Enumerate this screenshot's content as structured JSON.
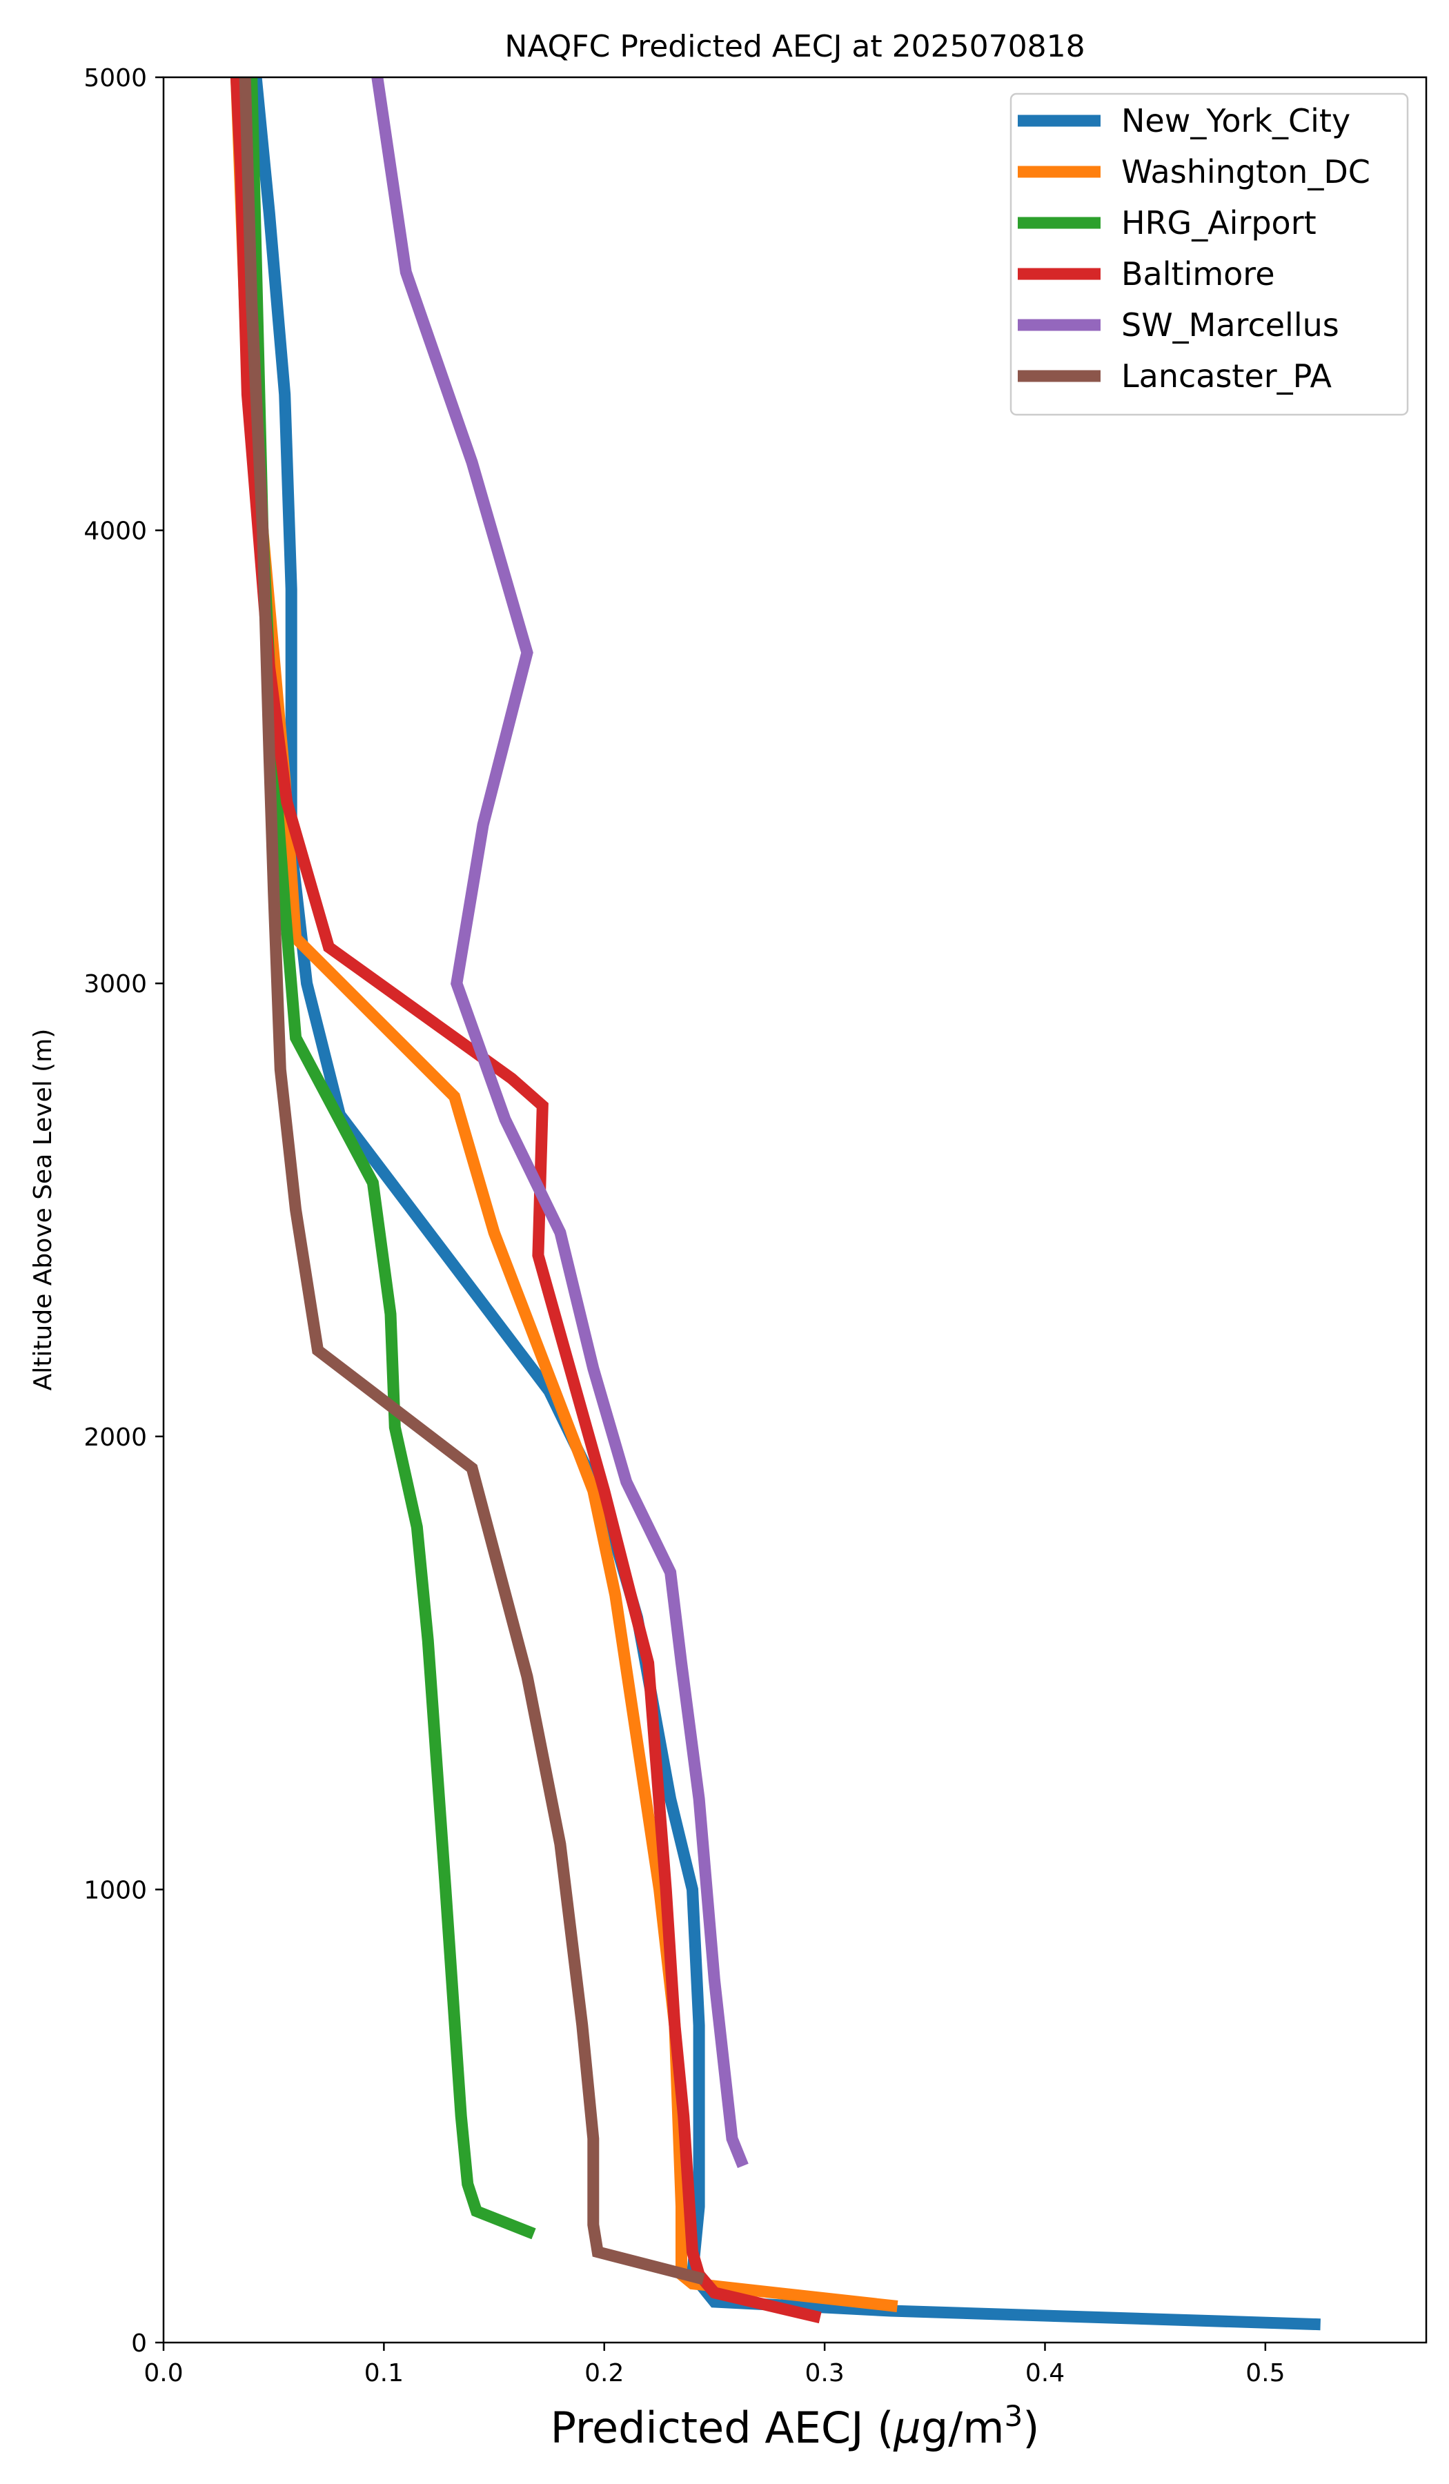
{
  "chart_data": {
    "type": "line",
    "title": "NAQFC Predicted AECJ at 2025070818",
    "xlabel_main": "Predicted AECJ (",
    "xlabel_mu": "μ",
    "xlabel_unit": "g/m",
    "xlabel_sup": "3",
    "xlabel_close": ")",
    "ylabel": "Altitude Above Sea Level (m)",
    "xlim": [
      0,
      0.573
    ],
    "ylim": [
      0,
      5000
    ],
    "xticks": [
      0.0,
      0.1,
      0.2,
      0.3,
      0.4,
      0.5
    ],
    "xtick_labels": [
      "0.0",
      "0.1",
      "0.2",
      "0.3",
      "0.4",
      "0.5"
    ],
    "yticks": [
      0,
      1000,
      2000,
      3000,
      4000,
      5000
    ],
    "ytick_labels": [
      "0",
      "1000",
      "2000",
      "3000",
      "4000",
      "5000"
    ],
    "grid": false,
    "legend_position": "top-right",
    "series": [
      {
        "name": "New_York_City",
        "color": "#1f77b4",
        "points": [
          [
            0.525,
            40
          ],
          [
            0.33,
            70
          ],
          [
            0.25,
            90
          ],
          [
            0.24,
            150
          ],
          [
            0.243,
            300
          ],
          [
            0.243,
            700
          ],
          [
            0.24,
            1000
          ],
          [
            0.23,
            1200
          ],
          [
            0.215,
            1600
          ],
          [
            0.2,
            1850
          ],
          [
            0.175,
            2100
          ],
          [
            0.08,
            2710
          ],
          [
            0.065,
            3000
          ],
          [
            0.058,
            3300
          ],
          [
            0.058,
            3450
          ],
          [
            0.058,
            3870
          ],
          [
            0.055,
            4300
          ],
          [
            0.048,
            4700
          ],
          [
            0.042,
            5000
          ]
        ]
      },
      {
        "name": "Washington_DC",
        "color": "#ff7f0e",
        "points": [
          [
            0.333,
            80
          ],
          [
            0.24,
            130
          ],
          [
            0.235,
            150
          ],
          [
            0.235,
            300
          ],
          [
            0.232,
            700
          ],
          [
            0.225,
            1000
          ],
          [
            0.205,
            1650
          ],
          [
            0.195,
            1880
          ],
          [
            0.15,
            2450
          ],
          [
            0.132,
            2750
          ],
          [
            0.06,
            3100
          ],
          [
            0.055,
            3450
          ],
          [
            0.045,
            4000
          ],
          [
            0.038,
            4350
          ],
          [
            0.033,
            5000
          ]
        ]
      },
      {
        "name": "HRG_Airport",
        "color": "#2ca02c",
        "points": [
          [
            0.168,
            240
          ],
          [
            0.142,
            290
          ],
          [
            0.138,
            350
          ],
          [
            0.135,
            500
          ],
          [
            0.128,
            1000
          ],
          [
            0.12,
            1550
          ],
          [
            0.115,
            1800
          ],
          [
            0.105,
            2020
          ],
          [
            0.103,
            2270
          ],
          [
            0.095,
            2560
          ],
          [
            0.06,
            2880
          ],
          [
            0.055,
            3170
          ],
          [
            0.05,
            3500
          ],
          [
            0.045,
            4000
          ],
          [
            0.04,
            5000
          ]
        ]
      },
      {
        "name": "Baltimore",
        "color": "#d62728",
        "points": [
          [
            0.298,
            55
          ],
          [
            0.25,
            110
          ],
          [
            0.243,
            150
          ],
          [
            0.24,
            200
          ],
          [
            0.236,
            500
          ],
          [
            0.232,
            700
          ],
          [
            0.228,
            1000
          ],
          [
            0.22,
            1500
          ],
          [
            0.212,
            1650
          ],
          [
            0.2,
            1880
          ],
          [
            0.17,
            2400
          ],
          [
            0.172,
            2730
          ],
          [
            0.158,
            2790
          ],
          [
            0.075,
            3080
          ],
          [
            0.056,
            3400
          ],
          [
            0.048,
            3700
          ],
          [
            0.038,
            4300
          ],
          [
            0.035,
            4800
          ],
          [
            0.033,
            5000
          ]
        ]
      },
      {
        "name": "SW_Marcellus",
        "color": "#9467bd",
        "points": [
          [
            0.263,
            390
          ],
          [
            0.258,
            450
          ],
          [
            0.25,
            800
          ],
          [
            0.243,
            1200
          ],
          [
            0.235,
            1500
          ],
          [
            0.23,
            1700
          ],
          [
            0.21,
            1900
          ],
          [
            0.195,
            2150
          ],
          [
            0.18,
            2450
          ],
          [
            0.155,
            2700
          ],
          [
            0.133,
            3000
          ],
          [
            0.145,
            3350
          ],
          [
            0.165,
            3730
          ],
          [
            0.14,
            4150
          ],
          [
            0.11,
            4570
          ],
          [
            0.097,
            5000
          ]
        ]
      },
      {
        "name": "Lancaster_PA",
        "color": "#8c564b",
        "points": [
          [
            0.245,
            140
          ],
          [
            0.197,
            200
          ],
          [
            0.195,
            260
          ],
          [
            0.195,
            450
          ],
          [
            0.19,
            700
          ],
          [
            0.18,
            1100
          ],
          [
            0.165,
            1470
          ],
          [
            0.14,
            1930
          ],
          [
            0.07,
            2190
          ],
          [
            0.06,
            2500
          ],
          [
            0.053,
            2810
          ],
          [
            0.05,
            3200
          ],
          [
            0.048,
            3500
          ],
          [
            0.045,
            4000
          ],
          [
            0.04,
            4500
          ],
          [
            0.037,
            5000
          ]
        ]
      }
    ]
  }
}
